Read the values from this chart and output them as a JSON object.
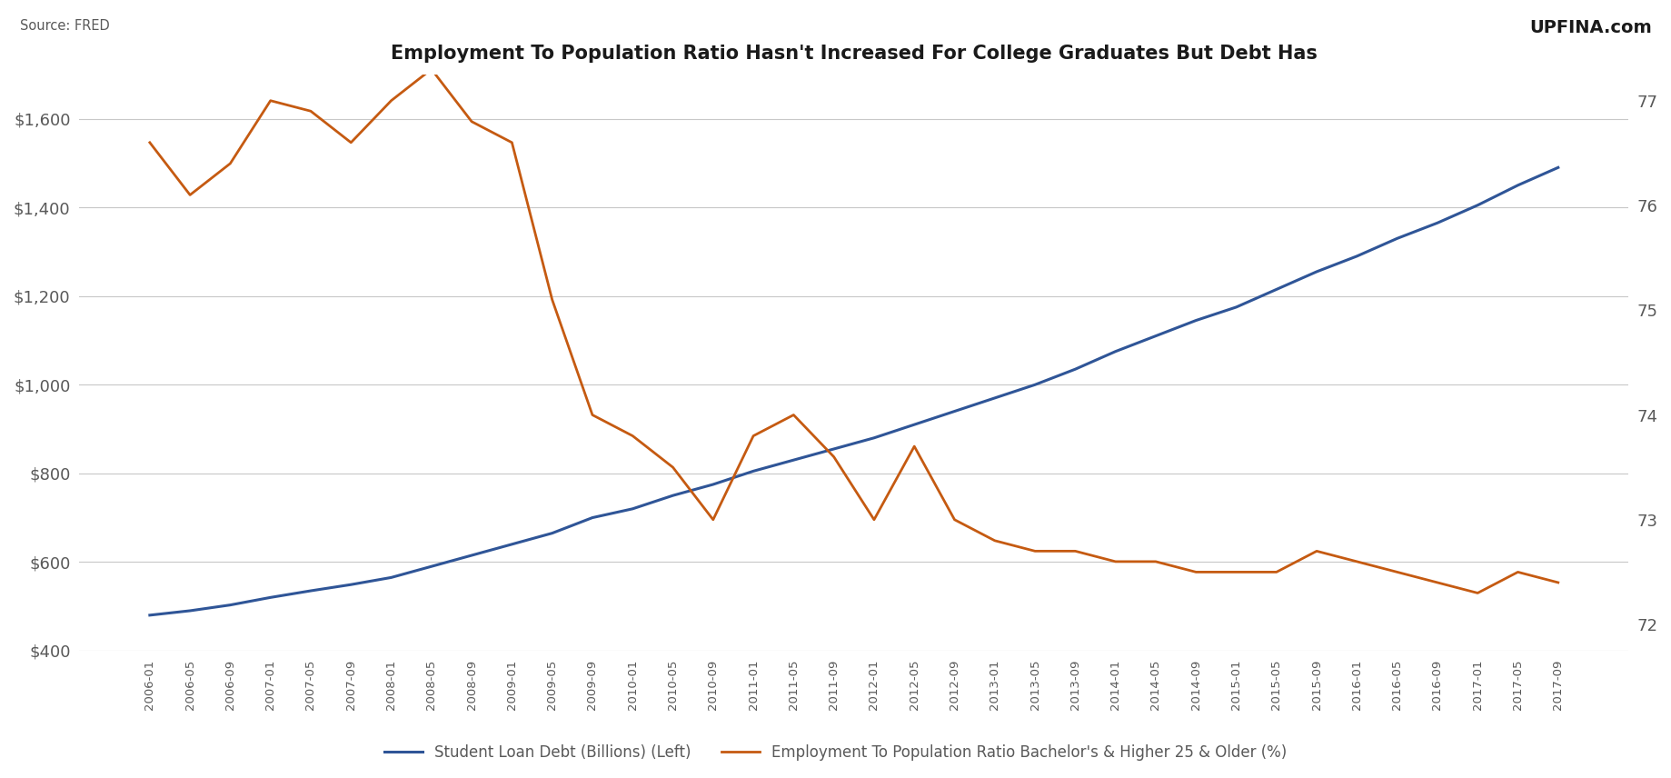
{
  "title": "Employment To Population Ratio Hasn't Increased For College Graduates But Debt Has",
  "source_text": "Source: FRED",
  "logo_text": "UPFINA.com",
  "x_labels": [
    "2006-01",
    "2006-05",
    "2006-09",
    "2007-01",
    "2007-05",
    "2007-09",
    "2008-01",
    "2008-05",
    "2008-09",
    "2009-01",
    "2009-05",
    "2009-09",
    "2010-01",
    "2010-05",
    "2010-09",
    "2011-01",
    "2011-05",
    "2011-09",
    "2012-01",
    "2012-05",
    "2012-09",
    "2013-01",
    "2013-05",
    "2013-09",
    "2014-01",
    "2014-05",
    "2014-09",
    "2015-01",
    "2015-05",
    "2015-09",
    "2016-01",
    "2016-05",
    "2016-09",
    "2017-01",
    "2017-05",
    "2017-09"
  ],
  "debt": [
    480,
    490,
    503,
    520,
    535,
    549,
    565,
    590,
    615,
    640,
    665,
    700,
    720,
    750,
    775,
    805,
    830,
    855,
    880,
    910,
    940,
    970,
    1000,
    1035,
    1075,
    1110,
    1145,
    1175,
    1215,
    1255,
    1290,
    1330,
    1365,
    1405,
    1450,
    1490
  ],
  "emp_ratio": [
    76.6,
    76.1,
    76.4,
    77.0,
    76.9,
    76.6,
    77.0,
    77.3,
    76.8,
    76.6,
    75.1,
    74.0,
    73.8,
    73.5,
    73.0,
    73.8,
    74.0,
    73.6,
    73.0,
    73.7,
    73.0,
    72.8,
    72.7,
    72.7,
    72.6,
    72.6,
    72.5,
    72.5,
    72.5,
    72.7,
    72.6,
    72.5,
    72.4,
    72.3,
    72.5,
    72.4
  ],
  "debt_color": "#2F5597",
  "emp_color": "#C55A11",
  "background_color": "#FFFFFF",
  "grid_color": "#C8C8C8",
  "text_color": "#595959",
  "left_ylim": [
    400,
    1700
  ],
  "left_yticks": [
    400,
    600,
    800,
    1000,
    1200,
    1400,
    1600
  ],
  "right_ylim": [
    71.75,
    77.25
  ],
  "right_ytick_positions": [
    72.0,
    72.5,
    73.0,
    73.5,
    74.0,
    74.5,
    75.0,
    75.5,
    76.0,
    76.5,
    77.0
  ],
  "right_ytick_labels": [
    "72",
    "",
    "73",
    "",
    "74",
    "",
    "75",
    "",
    "76",
    "",
    "77"
  ],
  "legend_label_debt": "Student Loan Debt (Billions) (Left)",
  "legend_label_emp": "Employment To Population Ratio Bachelor's & Higher 25 & Older (%)"
}
